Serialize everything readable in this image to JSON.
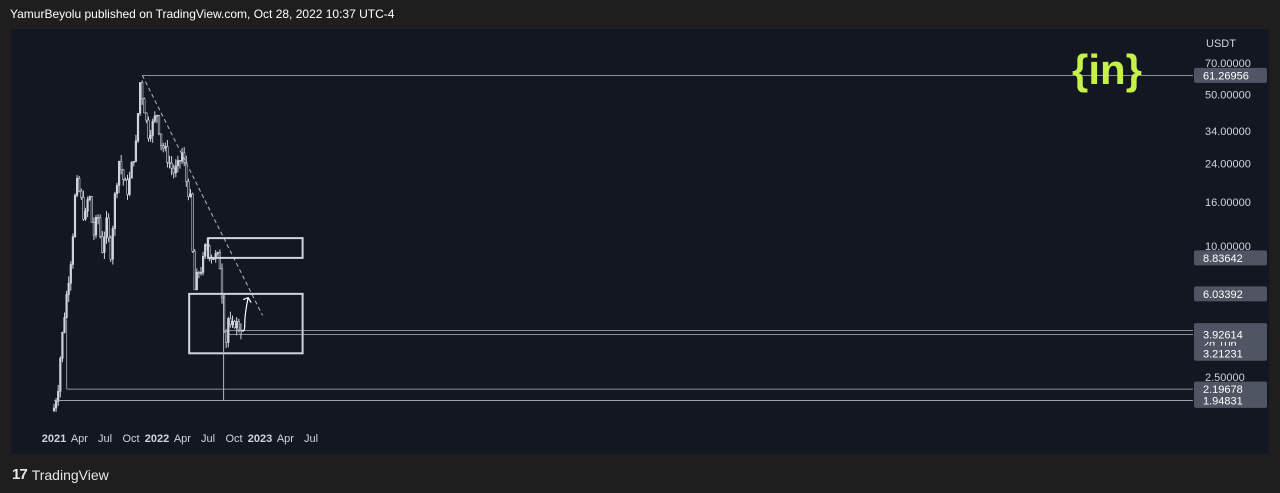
{
  "header": {
    "publish_line": "YamurBeyolu published on TradingView.com, Oct 28, 2022 10:37 UTC-4"
  },
  "footer": {
    "logo_mark": "17",
    "brand": "TradingView"
  },
  "watermark": {
    "text": "{in}",
    "color": "#c6f04a"
  },
  "colors": {
    "background": "#131722",
    "candle": "#d1d4dc",
    "line": "#b2b5be",
    "label_bg": "#4f5562"
  },
  "chart_data": {
    "type": "candlestick",
    "currency": "USDT",
    "scale": "log",
    "ylim": [
      1.6,
      95
    ],
    "x_ticks": [
      "2021",
      "Apr",
      "Jul",
      "Oct",
      "2022",
      "Apr",
      "Jul",
      "Oct",
      "2023",
      "Apr",
      "Jul"
    ],
    "y_ticks": [
      "70.00000",
      "50.00000",
      "34.00000",
      "24.00000",
      "16.00000",
      "10.00000",
      "4.08677",
      "2.50000"
    ],
    "price_labels": [
      {
        "text": "61.26956",
        "value": 61.26956
      },
      {
        "text": "8.83642",
        "value": 8.83642
      },
      {
        "text": "6.03392",
        "value": 6.03392
      },
      {
        "text": "4.08677",
        "value": 4.08677,
        "countdown": "2d 10h"
      },
      {
        "text": "3.92614",
        "value": 3.92614
      },
      {
        "text": "3.21231",
        "value": 3.21231
      },
      {
        "text": "2.19678",
        "value": 2.19678
      },
      {
        "text": "1.94831",
        "value": 1.94831
      }
    ],
    "price_path": [
      [
        "2021-01-01",
        1.8
      ],
      [
        "2021-01-15",
        2.2
      ],
      [
        "2021-01-25",
        3.3
      ],
      [
        "2021-02-05",
        4.6
      ],
      [
        "2021-02-18",
        6.5
      ],
      [
        "2021-03-05",
        9.5
      ],
      [
        "2021-03-20",
        20.0
      ],
      [
        "2021-04-05",
        17.0
      ],
      [
        "2021-04-20",
        13.0
      ],
      [
        "2021-05-05",
        18.0
      ],
      [
        "2021-05-20",
        11.0
      ],
      [
        "2021-06-05",
        14.0
      ],
      [
        "2021-06-20",
        9.5
      ],
      [
        "2021-07-05",
        13.0
      ],
      [
        "2021-07-20",
        9.0
      ],
      [
        "2021-08-05",
        17.0
      ],
      [
        "2021-08-20",
        25.0
      ],
      [
        "2021-09-05",
        20.0
      ],
      [
        "2021-09-20",
        18.0
      ],
      [
        "2021-10-05",
        24.0
      ],
      [
        "2021-10-20",
        30.0
      ],
      [
        "2021-11-01",
        58.0
      ],
      [
        "2021-11-15",
        45.0
      ],
      [
        "2021-12-01",
        33.0
      ],
      [
        "2021-12-15",
        36.0
      ],
      [
        "2022-01-01",
        41.0
      ],
      [
        "2022-01-15",
        30.0
      ],
      [
        "2022-02-01",
        27.0
      ],
      [
        "2022-02-15",
        24.0
      ],
      [
        "2022-03-01",
        22.0
      ],
      [
        "2022-03-15",
        23.0
      ],
      [
        "2022-04-01",
        27.0
      ],
      [
        "2022-04-15",
        20.0
      ],
      [
        "2022-05-01",
        16.0
      ],
      [
        "2022-05-12",
        6.0
      ],
      [
        "2022-05-25",
        7.5
      ],
      [
        "2022-06-10",
        8.0
      ],
      [
        "2022-06-25",
        10.5
      ],
      [
        "2022-07-10",
        9.0
      ],
      [
        "2022-07-25",
        9.0
      ],
      [
        "2022-08-10",
        8.8
      ],
      [
        "2022-08-20",
        6.0
      ],
      [
        "2022-09-01",
        3.4
      ],
      [
        "2022-09-10",
        4.7
      ],
      [
        "2022-09-20",
        4.0
      ],
      [
        "2022-10-01",
        4.5
      ],
      [
        "2022-10-15",
        4.3
      ],
      [
        "2022-10-27",
        4.09
      ]
    ],
    "drawings": {
      "all_time_high": {
        "date": "2021-11-10",
        "value": 61.26956
      },
      "trendline": [
        [
          "2021-11-10",
          61.26956
        ],
        [
          "2023-01-10",
          4.8
        ]
      ],
      "resistance_box": {
        "from": "2022-07-01",
        "to": "2023-06-01",
        "top": 10.9,
        "bottom": 8.83642
      },
      "support_box": {
        "from": "2022-04-25",
        "to": "2023-06-01",
        "top": 6.03392,
        "bottom": 3.21231
      },
      "level_4_08677": {
        "from": "2022-09-10",
        "value": 4.08677
      },
      "level_3_92614": {
        "from": "2022-09-10",
        "value": 3.92614
      },
      "level_2_19678": {
        "from": "2021-02-15",
        "value": 2.19678
      },
      "level_1_94831": {
        "from": "2021-01-01",
        "value": 1.94831
      },
      "vertical_marker": {
        "date": "2022-08-25",
        "top": 6.03392,
        "bottom": 1.94831
      },
      "left_vertical": {
        "date": "2021-02-15",
        "top": 4.6,
        "bottom": 3.0
      },
      "projection_arrow": [
        [
          "2022-10-28",
          4.1
        ],
        [
          "2022-11-08",
          4.4
        ],
        [
          "2022-11-20",
          5.8
        ]
      ]
    }
  }
}
